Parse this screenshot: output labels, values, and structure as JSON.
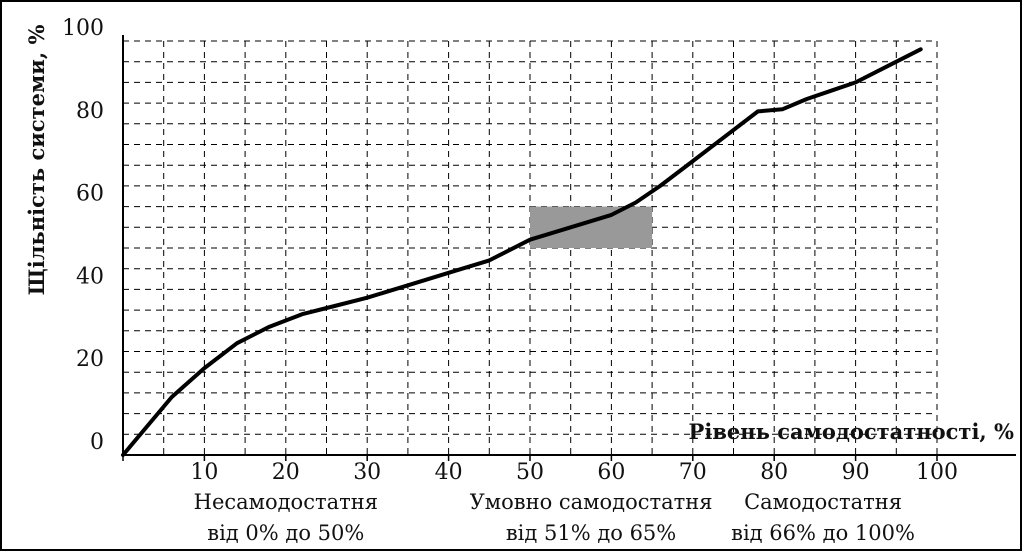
{
  "chart_data": {
    "type": "line",
    "xlabel": "Рівень самодостатності, %",
    "ylabel": "Щільність системи, %",
    "xlim": [
      0,
      100
    ],
    "ylim": [
      0,
      100
    ],
    "xticks": [
      0,
      10,
      20,
      30,
      40,
      50,
      60,
      70,
      80,
      90,
      100
    ],
    "yticks": [
      0,
      20,
      40,
      60,
      80,
      100
    ],
    "grid": true,
    "series": [
      {
        "x": [
          0,
          3,
          6,
          10,
          14,
          18,
          22,
          26,
          30,
          35,
          40,
          45,
          50,
          55,
          60,
          63,
          66,
          70,
          74,
          78,
          81,
          84,
          87,
          90,
          94,
          98
        ],
        "y": [
          0,
          7,
          14,
          21,
          27,
          31,
          34,
          36,
          38,
          41,
          44,
          47,
          52,
          55,
          58,
          61,
          65,
          71,
          77,
          83,
          83.5,
          86,
          88,
          90,
          94,
          98
        ],
        "color": "#000000"
      }
    ],
    "highlight_region": {
      "x": [
        50,
        65
      ],
      "y": [
        50,
        60
      ],
      "color": "#999999"
    },
    "zones": [
      {
        "line1": "Несамодостатня",
        "line2": "від 0% до 50%",
        "x_center": 20
      },
      {
        "line1": "Умовно самодостатня",
        "line2": "від 51% до 65%",
        "x_center": 57.5
      },
      {
        "line1": "Самодостатня",
        "line2": "від 66% до 100%",
        "x_center": 86
      }
    ]
  }
}
